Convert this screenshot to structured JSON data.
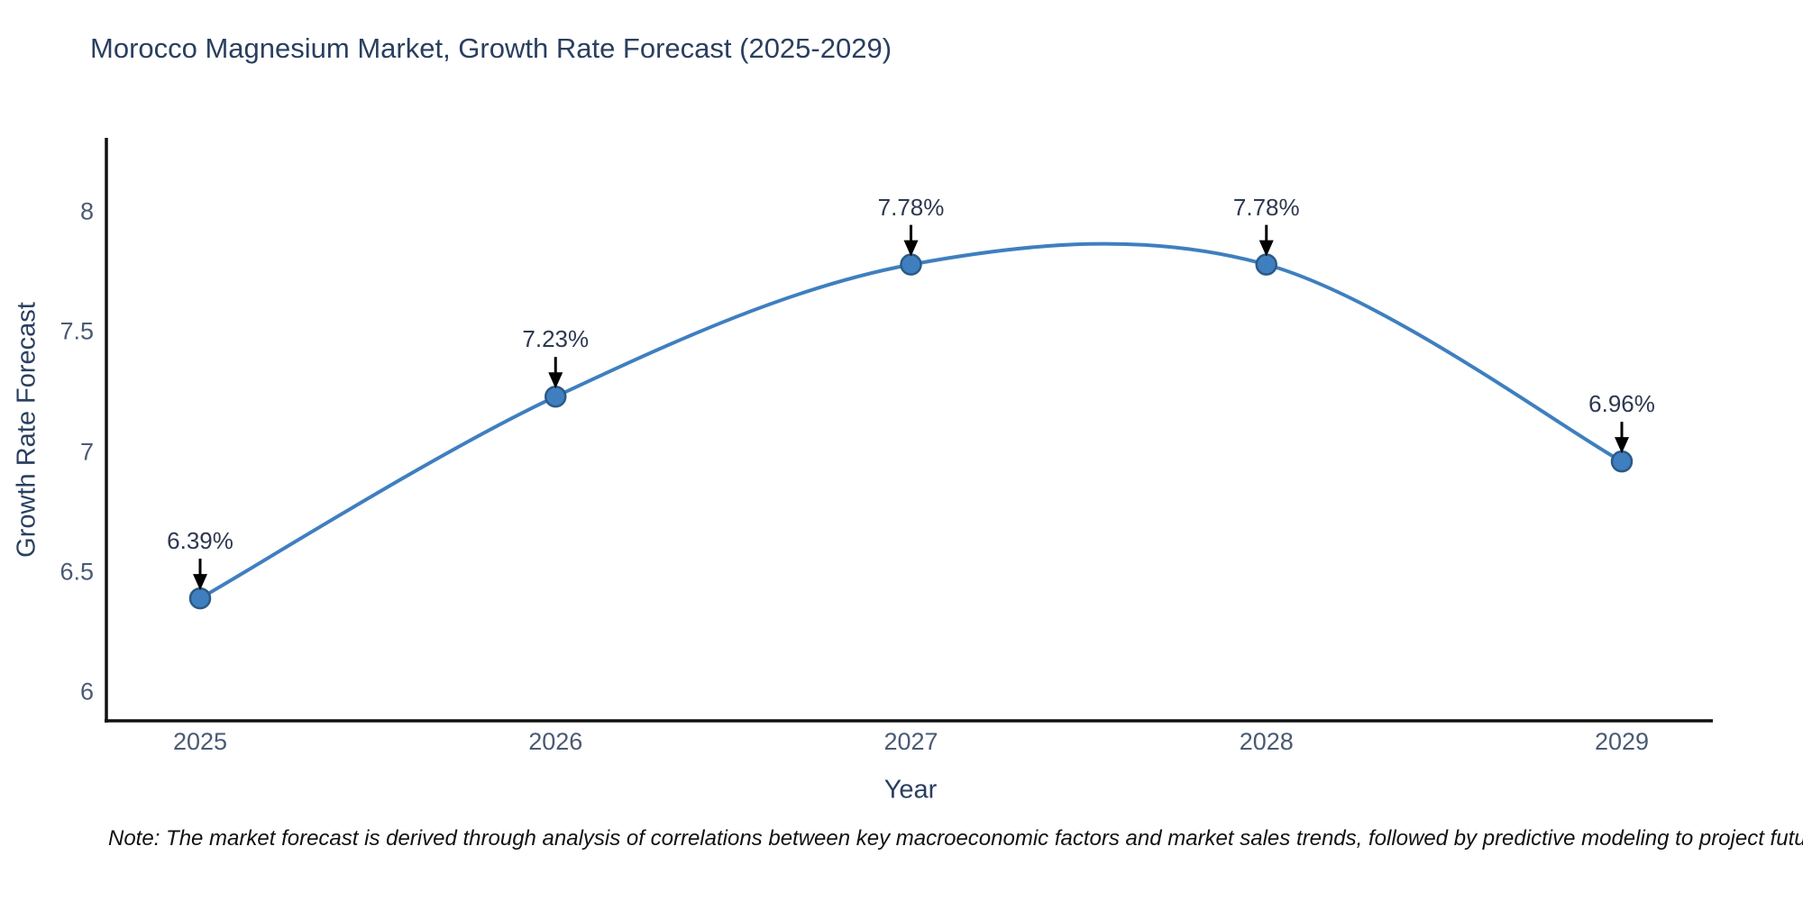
{
  "page": {
    "background": "#ffffff"
  },
  "chart_data": {
    "type": "line",
    "line_shape": "spline",
    "title": "Morocco Magnesium Market, Growth Rate Forecast (2025-2029)",
    "xlabel": "Year",
    "ylabel": "Growth Rate Forecast",
    "categories": [
      "2025",
      "2026",
      "2027",
      "2028",
      "2029"
    ],
    "values": [
      6.39,
      7.23,
      7.78,
      7.78,
      6.96
    ],
    "point_labels": [
      "6.39%",
      "7.23%",
      "7.78%",
      "7.78%",
      "6.96%"
    ],
    "yticks": [
      8,
      7.5,
      7,
      6.5,
      6
    ],
    "ytick_labels": [
      "8",
      "7.5",
      "7",
      "6.5",
      "6"
    ],
    "ylim": [
      5.88,
      8.3
    ],
    "grid": false,
    "legend": false,
    "annotations_have_arrows": true,
    "note": "Note: The market forecast is derived through analysis of correlations between key macroeconomic factors and market sales trends, followed by predictive modeling to project future sales",
    "colors": {
      "line": "#3f7fbf",
      "marker": "#3f7fbf",
      "marker_edge": "#2c5a86",
      "axis": "#111111",
      "arrow": "#000000",
      "title_text": "#2a3f5f",
      "tick_text": "#4a5a73",
      "note_text": "#111111"
    }
  }
}
